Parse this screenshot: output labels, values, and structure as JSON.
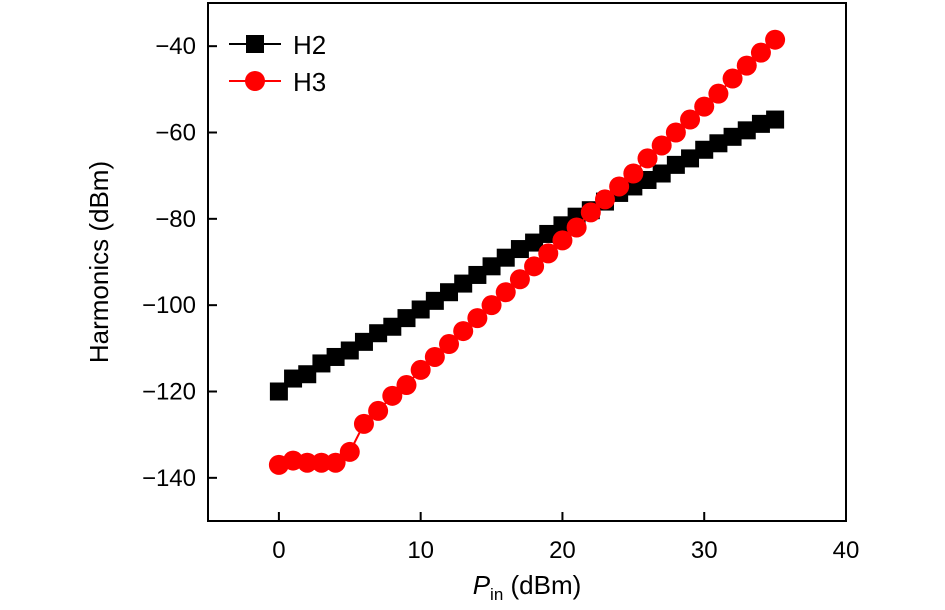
{
  "chart_data": {
    "type": "scatter",
    "title": "",
    "xlabel_main": "P",
    "xlabel_sub": "in",
    "xlabel_unit": " (dBm)",
    "ylabel": "Harmonics (dBm)",
    "xlim": [
      -5,
      40
    ],
    "ylim": [
      -150,
      -30
    ],
    "xticks": [
      0,
      10,
      20,
      30,
      40
    ],
    "yticks": [
      -140,
      -120,
      -100,
      -80,
      -60,
      -40
    ],
    "xtick_labels": [
      "0",
      "10",
      "20",
      "30",
      "40"
    ],
    "ytick_labels": [
      "−140",
      "−120",
      "−100",
      "−80",
      "−60",
      "−40"
    ],
    "legend_position": "top-left",
    "series": [
      {
        "name": "H2",
        "color": "#000000",
        "marker": "square",
        "x": [
          0,
          1,
          2,
          3,
          4,
          5,
          6,
          7,
          8,
          9,
          10,
          11,
          12,
          13,
          14,
          15,
          16,
          17,
          18,
          19,
          20,
          21,
          22,
          23,
          24,
          25,
          26,
          27,
          28,
          29,
          30,
          31,
          32,
          33,
          34,
          35
        ],
        "y": [
          -120,
          -117,
          -116,
          -113.5,
          -112,
          -110.5,
          -108.5,
          -106.5,
          -105,
          -103,
          -101,
          -99,
          -97,
          -95,
          -93,
          -91,
          -89,
          -87,
          -85.5,
          -83.5,
          -81.5,
          -79.5,
          -78,
          -76,
          -74,
          -72.5,
          -71,
          -69.5,
          -67.5,
          -66,
          -64,
          -62.5,
          -61,
          -59.5,
          -58,
          -57
        ]
      },
      {
        "name": "H3",
        "color": "#ff0000",
        "marker": "circle",
        "x": [
          0,
          1,
          2,
          3,
          4,
          5,
          6,
          7,
          8,
          9,
          10,
          11,
          12,
          13,
          14,
          15,
          16,
          17,
          18,
          19,
          20,
          21,
          22,
          23,
          24,
          25,
          26,
          27,
          28,
          29,
          30,
          31,
          32,
          33,
          34,
          35
        ],
        "y": [
          -137,
          -136,
          -136.5,
          -136.5,
          -136.5,
          -134,
          -127.5,
          -124.5,
          -121,
          -118.5,
          -115,
          -112,
          -109,
          -106,
          -103,
          -100,
          -97,
          -94,
          -91,
          -88,
          -85,
          -82,
          -78.5,
          -75.5,
          -72.5,
          -69.5,
          -66,
          -63,
          -60,
          -57,
          -54,
          -51,
          -47.5,
          -44.5,
          -41.5,
          -38.5
        ]
      }
    ]
  }
}
